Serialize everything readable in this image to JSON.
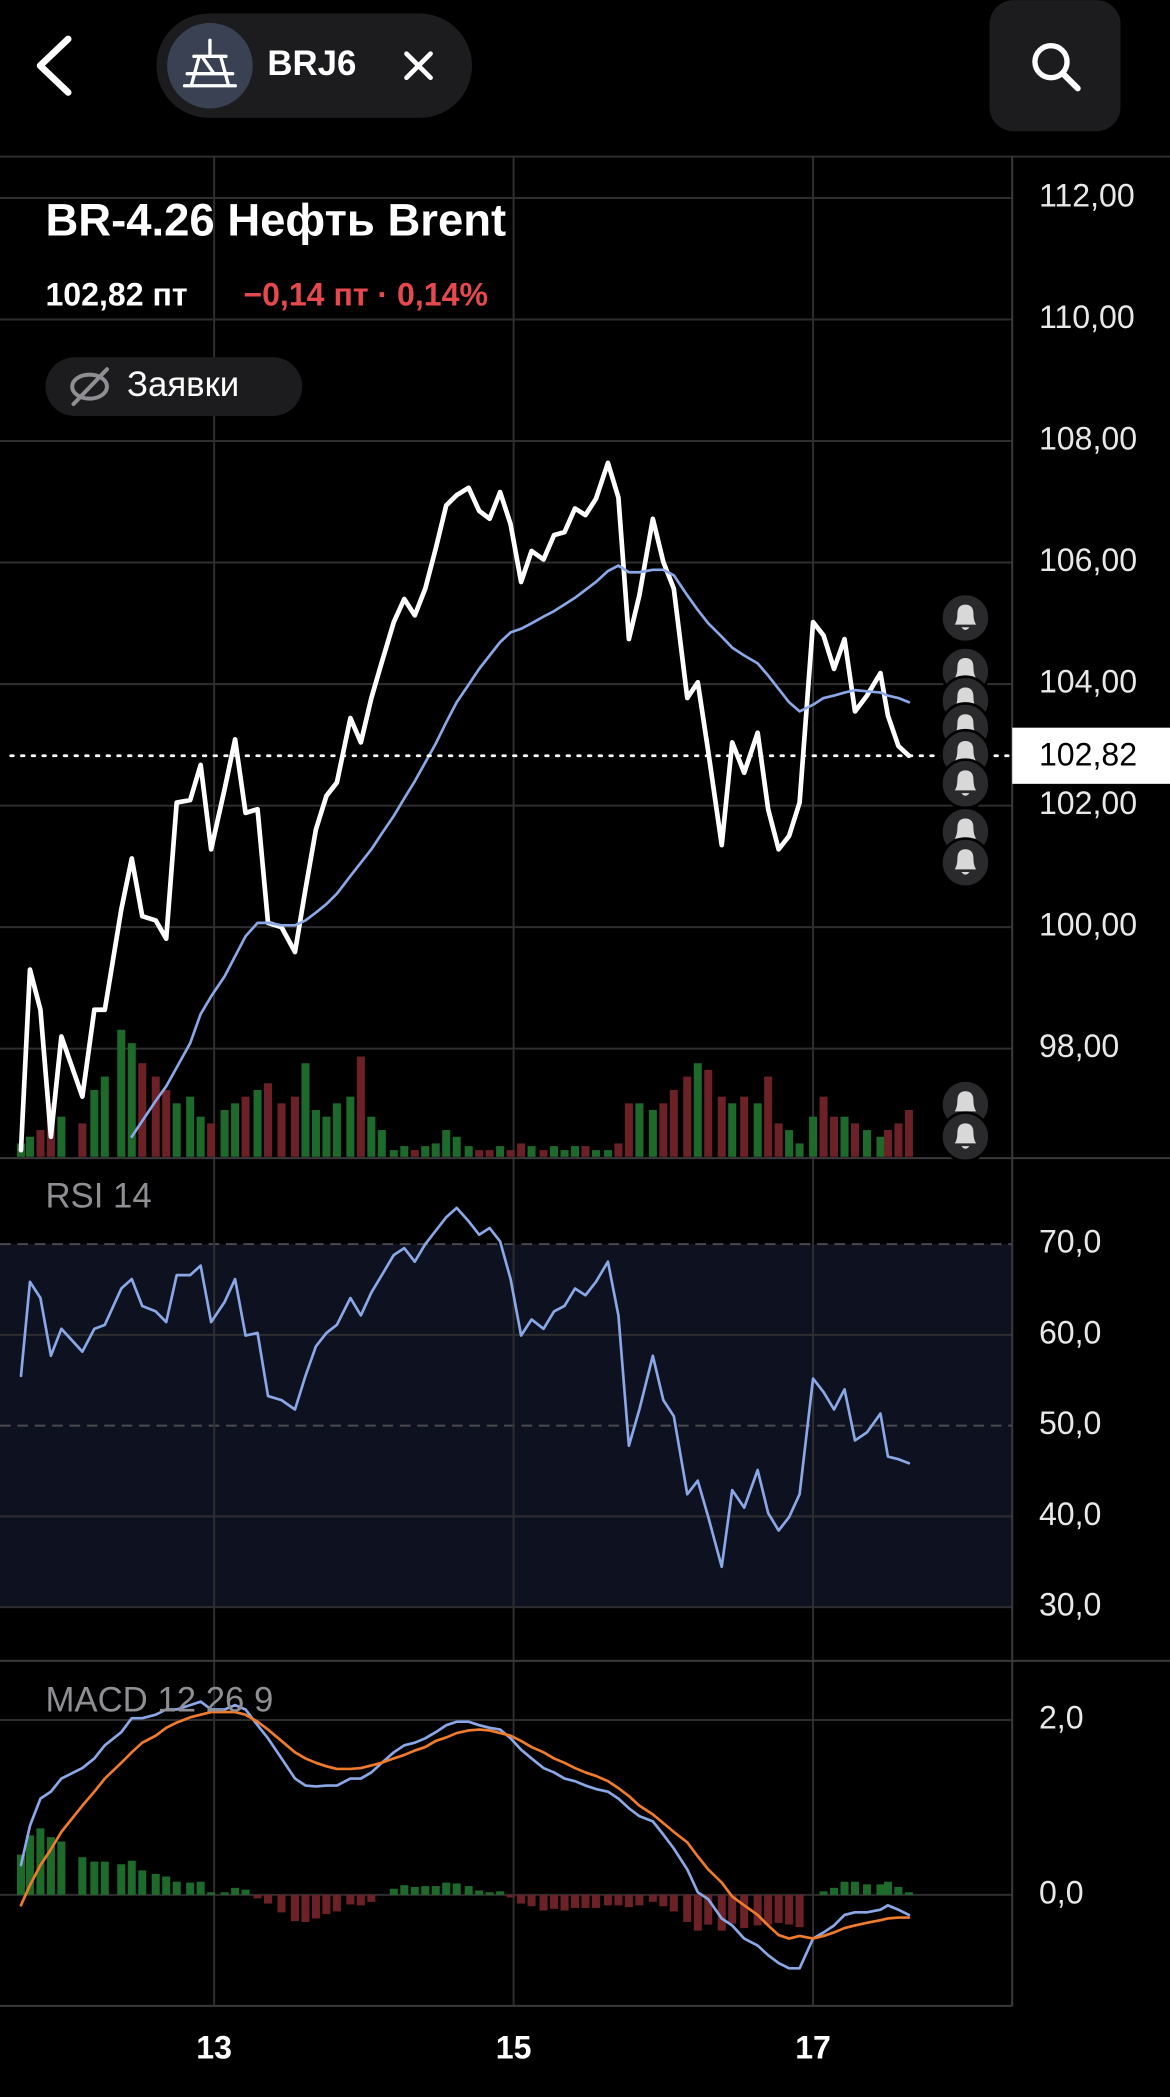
{
  "header": {
    "ticker": "BRJ6",
    "title": "BR-4.26 Нефть Brent",
    "price": "102,82 пт",
    "change": "−0,14 пт · 0,14%",
    "orders_toggle": "Заявки"
  },
  "chart_data": [
    {
      "type": "line",
      "xlim": [
        11.57,
        18.33
      ],
      "x": [
        11.71,
        11.77,
        11.84,
        11.91,
        11.98,
        12.12,
        12.2,
        12.27,
        12.38,
        12.45,
        12.52,
        12.61,
        12.68,
        12.75,
        12.84,
        12.91,
        12.98,
        13.07,
        13.14,
        13.21,
        13.29,
        13.36,
        13.45,
        13.54,
        13.61,
        13.68,
        13.75,
        13.82,
        13.91,
        13.98,
        14.05,
        14.12,
        14.2,
        14.27,
        14.34,
        14.41,
        14.48,
        14.55,
        14.62,
        14.7,
        14.77,
        14.84,
        14.91,
        14.98,
        15.05,
        15.12,
        15.2,
        15.27,
        15.34,
        15.41,
        15.48,
        15.55,
        15.63,
        15.7,
        15.77,
        15.84,
        15.93,
        16,
        16.07,
        16.16,
        16.23,
        16.3,
        16.39,
        16.46,
        16.54,
        16.63,
        16.7,
        16.77,
        16.84,
        16.91,
        17,
        17.07,
        17.14,
        17.21,
        17.28,
        17.36,
        17.45,
        17.5,
        17.57,
        17.64
      ],
      "series": [
        {
          "color": "#ffffff",
          "width": 3.5,
          "values": [
            96.33,
            99.3,
            98.64,
            96.55,
            98.2,
            97.21,
            98.64,
            98.64,
            100.29,
            101.13,
            100.18,
            100.11,
            99.81,
            102.05,
            102.09,
            102.67,
            101.28,
            102.27,
            103.09,
            101.88,
            101.94,
            100.07,
            100,
            99.59,
            100.62,
            101.61,
            102.16,
            102.38,
            103.44,
            103.04,
            103.77,
            104.36,
            105.02,
            105.4,
            105.13,
            105.57,
            106.23,
            106.94,
            107.11,
            107.23,
            106.85,
            106.72,
            107.16,
            106.63,
            105.68,
            106.19,
            106.05,
            106.45,
            106.5,
            106.89,
            106.78,
            107.05,
            107.64,
            107.07,
            104.74,
            105.46,
            106.72,
            106.01,
            105.57,
            103.77,
            104.03,
            102.89,
            101.35,
            103.04,
            102.54,
            103.2,
            101.94,
            101.28,
            101.5,
            102.05,
            105.02,
            104.8,
            104.25,
            104.74,
            103.55,
            103.81,
            104.18,
            103.48,
            102.98,
            102.82
          ]
        },
        {
          "color": "#8aa8e8",
          "width": 2,
          "values": [
            null,
            null,
            null,
            null,
            null,
            null,
            null,
            null,
            null,
            96.55,
            96.81,
            97.14,
            97.38,
            97.69,
            98.09,
            98.57,
            98.86,
            99.19,
            99.52,
            99.85,
            100.07,
            100.07,
            100.03,
            100.03,
            100.11,
            100.24,
            100.38,
            100.55,
            100.84,
            101.06,
            101.28,
            101.54,
            101.83,
            102.12,
            102.4,
            102.71,
            103.02,
            103.37,
            103.7,
            103.99,
            104.25,
            104.47,
            104.69,
            104.85,
            104.91,
            105,
            105.11,
            105.2,
            105.31,
            105.42,
            105.55,
            105.68,
            105.86,
            105.95,
            105.84,
            105.84,
            105.88,
            105.88,
            105.79,
            105.46,
            105.22,
            105,
            104.78,
            104.6,
            104.47,
            104.34,
            104.14,
            103.92,
            103.7,
            103.55,
            103.66,
            103.77,
            103.81,
            103.86,
            103.9,
            103.88,
            103.86,
            103.81,
            103.77,
            103.7
          ]
        }
      ],
      "volume": {
        "up_color": "#1d6a2a",
        "down_color": "#6b2126",
        "values": [
          10,
          15,
          20,
          40,
          30,
          25,
          50,
          60,
          95,
          85,
          70,
          60,
          50,
          40,
          45,
          30,
          25,
          35,
          40,
          45,
          50,
          55,
          40,
          45,
          70,
          35,
          30,
          40,
          45,
          75,
          30,
          20,
          5,
          8,
          5,
          8,
          10,
          20,
          15,
          8,
          5,
          5,
          8,
          5,
          10,
          8,
          5,
          8,
          5,
          8,
          8,
          5,
          5,
          10,
          40,
          40,
          35,
          40,
          50,
          60,
          70,
          65,
          45,
          40,
          45,
          40,
          60,
          25,
          20,
          10,
          30,
          45,
          30,
          30,
          25,
          20,
          15,
          20,
          25,
          35
        ]
      },
      "vlim": [
        0,
        100
      ],
      "ylim": [
        96.22,
        112.68
      ],
      "yticks": [
        {
          "value": 98,
          "label": "98,00"
        },
        {
          "value": 100,
          "label": "100,00"
        },
        {
          "value": 102,
          "label": "102,00"
        },
        {
          "value": 104,
          "label": "104,00"
        },
        {
          "value": 106,
          "label": "106,00"
        },
        {
          "value": 108,
          "label": "108,00"
        },
        {
          "value": 110,
          "label": "110,00"
        },
        {
          "value": 112,
          "label": "112,00"
        }
      ],
      "last_value": {
        "value": 102.82,
        "label": "102,82"
      },
      "grid": true
    },
    {
      "type": "line",
      "title": "RSI 14",
      "xlim": [
        11.57,
        18.33
      ],
      "x": [
        11.71,
        11.77,
        11.84,
        11.91,
        11.98,
        12.12,
        12.2,
        12.27,
        12.38,
        12.45,
        12.52,
        12.61,
        12.68,
        12.75,
        12.84,
        12.91,
        12.98,
        13.07,
        13.14,
        13.21,
        13.29,
        13.36,
        13.45,
        13.54,
        13.61,
        13.68,
        13.75,
        13.82,
        13.91,
        13.98,
        14.05,
        14.12,
        14.2,
        14.27,
        14.34,
        14.41,
        14.48,
        14.55,
        14.62,
        14.7,
        14.77,
        14.84,
        14.91,
        14.98,
        15.05,
        15.12,
        15.2,
        15.27,
        15.34,
        15.41,
        15.48,
        15.55,
        15.63,
        15.7,
        15.77,
        15.84,
        15.93,
        16,
        16.07,
        16.16,
        16.23,
        16.3,
        16.39,
        16.46,
        16.54,
        16.63,
        16.7,
        16.77,
        16.84,
        16.91,
        17,
        17.07,
        17.14,
        17.21,
        17.28,
        17.36,
        17.45,
        17.5,
        17.57,
        17.64
      ],
      "series": [
        {
          "color": "#8aa8e8",
          "width": 2,
          "values": [
            55.48,
            65.85,
            64.07,
            57.7,
            60.67,
            58.15,
            60.67,
            61.11,
            65.11,
            66.15,
            63.19,
            62.59,
            61.41,
            66.59,
            66.59,
            67.63,
            61.41,
            63.63,
            66.15,
            59.93,
            60.22,
            53.26,
            52.81,
            51.78,
            55.48,
            58.74,
            60.22,
            61.11,
            64.07,
            62.15,
            64.67,
            66.59,
            68.81,
            69.56,
            68.07,
            70,
            71.48,
            72.96,
            74,
            72.52,
            71.04,
            71.78,
            70.3,
            66.15,
            59.93,
            61.7,
            60.67,
            62.59,
            63.19,
            65.11,
            64.37,
            65.85,
            68.07,
            62.15,
            47.78,
            51.78,
            57.7,
            52.81,
            51.04,
            42.44,
            43.93,
            39.93,
            34.44,
            42.89,
            40.96,
            45.11,
            40.37,
            38.44,
            39.93,
            42.44,
            55.19,
            53.7,
            51.78,
            54,
            48.37,
            49.26,
            51.33,
            46.59,
            46.3,
            45.85
          ]
        }
      ],
      "ylim": [
        24.07,
        79.48
      ],
      "yticks": [
        {
          "value": 30,
          "label": "30,0"
        },
        {
          "value": 40,
          "label": "40,0"
        },
        {
          "value": 50,
          "label": "50,0"
        },
        {
          "value": 60,
          "label": "60,0"
        },
        {
          "value": 70,
          "label": "70,0"
        }
      ],
      "band": [
        30,
        70
      ],
      "band_color": "#0e1220",
      "dashed": [
        50,
        70
      ],
      "grid": true
    },
    {
      "type": "line",
      "title": "MACD 12 26 9",
      "xlim": [
        11.57,
        18.33
      ],
      "xticks": [
        13,
        15,
        17
      ],
      "x": [
        11.71,
        11.77,
        11.84,
        11.91,
        11.98,
        12.12,
        12.2,
        12.27,
        12.38,
        12.45,
        12.52,
        12.61,
        12.68,
        12.75,
        12.84,
        12.91,
        12.98,
        13.07,
        13.14,
        13.21,
        13.29,
        13.36,
        13.45,
        13.54,
        13.61,
        13.68,
        13.75,
        13.82,
        13.91,
        13.98,
        14.05,
        14.12,
        14.2,
        14.27,
        14.34,
        14.41,
        14.48,
        14.55,
        14.62,
        14.7,
        14.77,
        14.84,
        14.91,
        14.98,
        15.05,
        15.12,
        15.2,
        15.27,
        15.34,
        15.41,
        15.48,
        15.55,
        15.63,
        15.7,
        15.77,
        15.84,
        15.93,
        16,
        16.07,
        16.16,
        16.23,
        16.3,
        16.39,
        16.46,
        16.54,
        16.63,
        16.7,
        16.77,
        16.84,
        16.91,
        17,
        17.07,
        17.14,
        17.21,
        17.28,
        17.36,
        17.45,
        17.5,
        17.57,
        17.64
      ],
      "histogram": {
        "up_color": "#1d6a2a",
        "down_color": "#6b2126",
        "values": [
          0.46,
          0.68,
          0.76,
          0.66,
          0.61,
          0.43,
          0.38,
          0.38,
          0.35,
          0.39,
          0.28,
          0.24,
          0.21,
          0.15,
          0.14,
          0.15,
          0.03,
          0.03,
          0.08,
          0.06,
          -0.04,
          -0.1,
          -0.2,
          -0.3,
          -0.31,
          -0.27,
          -0.22,
          -0.19,
          -0.11,
          -0.12,
          -0.08,
          0,
          0.07,
          0.11,
          0.09,
          0.1,
          0.1,
          0.14,
          0.13,
          0.1,
          0.05,
          0.03,
          0.04,
          -0.03,
          -0.1,
          -0.13,
          -0.18,
          -0.16,
          -0.18,
          -0.15,
          -0.15,
          -0.15,
          -0.12,
          -0.12,
          -0.14,
          -0.12,
          -0.08,
          -0.13,
          -0.19,
          -0.31,
          -0.41,
          -0.34,
          -0.41,
          -0.33,
          -0.38,
          -0.35,
          -0.34,
          -0.32,
          -0.34,
          -0.37,
          0,
          0.04,
          0.08,
          0.15,
          0.15,
          0.12,
          0.12,
          0.15,
          0.09,
          0.03
        ]
      },
      "series": [
        {
          "color": "#8aa8e8",
          "width": 2,
          "values": [
            0.34,
            0.79,
            1.1,
            1.18,
            1.33,
            1.45,
            1.56,
            1.71,
            1.86,
            2.02,
            2.02,
            2.06,
            2.12,
            2.12,
            2.17,
            2.21,
            2.12,
            2.12,
            2.17,
            2.12,
            1.94,
            1.79,
            1.56,
            1.33,
            1.25,
            1.24,
            1.25,
            1.25,
            1.33,
            1.33,
            1.4,
            1.51,
            1.63,
            1.71,
            1.74,
            1.79,
            1.86,
            1.94,
            1.98,
            1.98,
            1.94,
            1.91,
            1.89,
            1.79,
            1.66,
            1.56,
            1.45,
            1.4,
            1.33,
            1.3,
            1.25,
            1.21,
            1.18,
            1.1,
            0.99,
            0.9,
            0.84,
            0.69,
            0.53,
            0.29,
            0.03,
            -0.05,
            -0.27,
            -0.35,
            -0.5,
            -0.58,
            -0.69,
            -0.78,
            -0.84,
            -0.84,
            -0.5,
            -0.43,
            -0.35,
            -0.23,
            -0.2,
            -0.2,
            -0.17,
            -0.12,
            -0.17,
            -0.23
          ]
        },
        {
          "color": "#f07b2a",
          "width": 2,
          "values": [
            -0.12,
            0.11,
            0.34,
            0.52,
            0.72,
            1.02,
            1.18,
            1.33,
            1.51,
            1.63,
            1.74,
            1.82,
            1.91,
            1.97,
            2.03,
            2.06,
            2.09,
            2.09,
            2.09,
            2.06,
            1.98,
            1.89,
            1.76,
            1.63,
            1.56,
            1.51,
            1.47,
            1.44,
            1.44,
            1.45,
            1.48,
            1.51,
            1.56,
            1.6,
            1.65,
            1.69,
            1.76,
            1.8,
            1.85,
            1.88,
            1.89,
            1.88,
            1.85,
            1.82,
            1.76,
            1.69,
            1.63,
            1.56,
            1.51,
            1.45,
            1.4,
            1.36,
            1.3,
            1.22,
            1.13,
            1.02,
            0.92,
            0.82,
            0.72,
            0.6,
            0.44,
            0.29,
            0.14,
            -0.02,
            -0.12,
            -0.23,
            -0.35,
            -0.46,
            -0.5,
            -0.47,
            -0.5,
            -0.47,
            -0.43,
            -0.38,
            -0.35,
            -0.32,
            -0.29,
            -0.27,
            -0.26,
            -0.26
          ]
        }
      ],
      "ylim": [
        -1.27,
        2.66
      ],
      "yticks": [
        {
          "value": 0,
          "label": "0,0"
        },
        {
          "value": 2,
          "label": "2,0"
        }
      ],
      "grid": true
    }
  ]
}
